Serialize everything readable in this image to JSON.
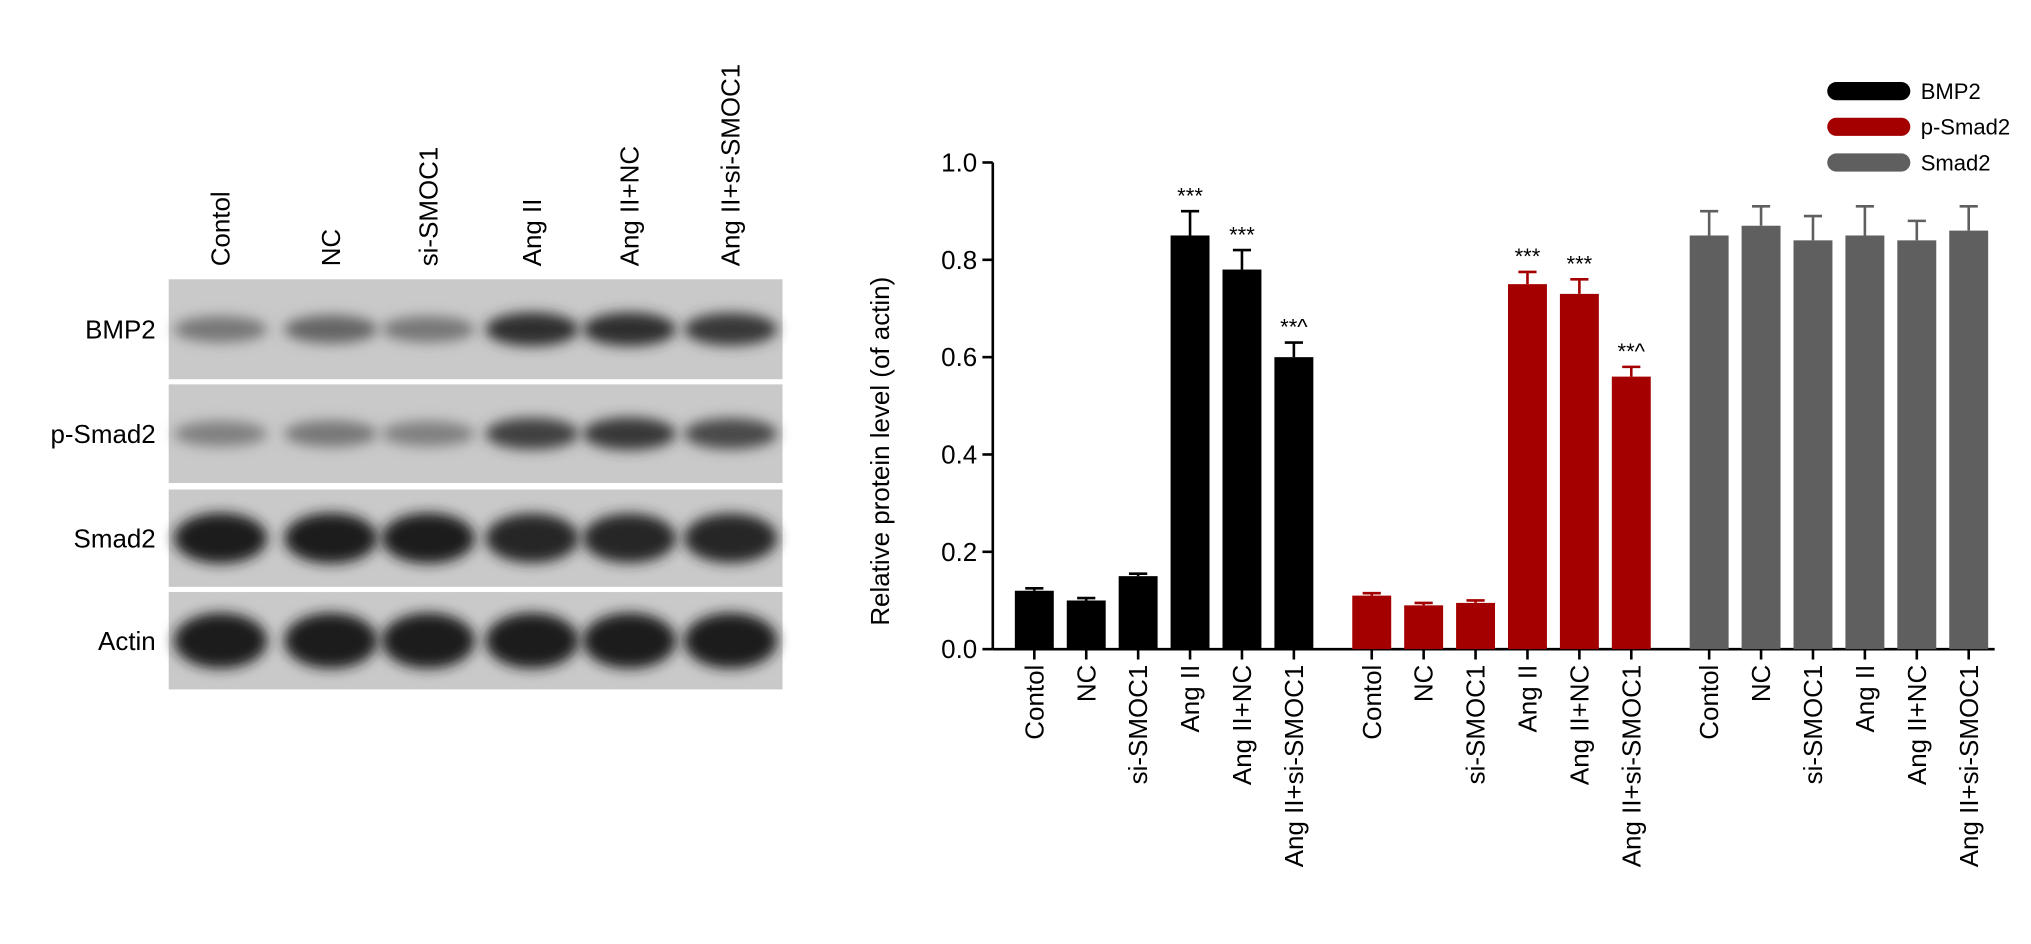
{
  "blot": {
    "lanes": [
      "Contol",
      "NC",
      "si-SMOC1",
      "Ang II",
      "Ang II+NC",
      "Ang II+si-SMOC1"
    ],
    "rows": [
      "BMP2",
      "p-Smad2",
      "Smad2",
      "Actin"
    ]
  },
  "chart_data": {
    "type": "bar",
    "y_label": "Relative protein level (of actin)",
    "categories": [
      "Contol",
      "NC",
      "si-SMOC1",
      "Ang II",
      "Ang II+NC",
      "Ang II+si-SMOC1"
    ],
    "series": [
      {
        "name": "BMP2",
        "color": "#000000",
        "values": [
          0.12,
          0.1,
          0.15,
          0.85,
          0.78,
          0.6
        ],
        "errors": [
          0.005,
          0.005,
          0.005,
          0.05,
          0.04,
          0.03
        ],
        "annotations": [
          null,
          null,
          null,
          "***",
          "***",
          "**^"
        ]
      },
      {
        "name": "p-Smad2",
        "color": "#a50000",
        "values": [
          0.11,
          0.09,
          0.095,
          0.75,
          0.73,
          0.56
        ],
        "errors": [
          0.005,
          0.005,
          0.005,
          0.025,
          0.03,
          0.02
        ],
        "annotations": [
          null,
          null,
          null,
          "***",
          "***",
          "**^"
        ]
      },
      {
        "name": "Smad2",
        "color": "#5f5f5f",
        "values": [
          0.85,
          0.87,
          0.84,
          0.85,
          0.84,
          0.86
        ],
        "errors": [
          0.05,
          0.04,
          0.05,
          0.06,
          0.04,
          0.05
        ],
        "annotations": [
          null,
          null,
          null,
          null,
          null,
          null
        ]
      }
    ],
    "ylim": [
      0,
      1.0
    ],
    "yticks": [
      {
        "value": 0,
        "label": "0.0"
      },
      0.2,
      0.4,
      0.6,
      0.8,
      {
        "value": 1.0,
        "label": "1.0"
      }
    ]
  }
}
